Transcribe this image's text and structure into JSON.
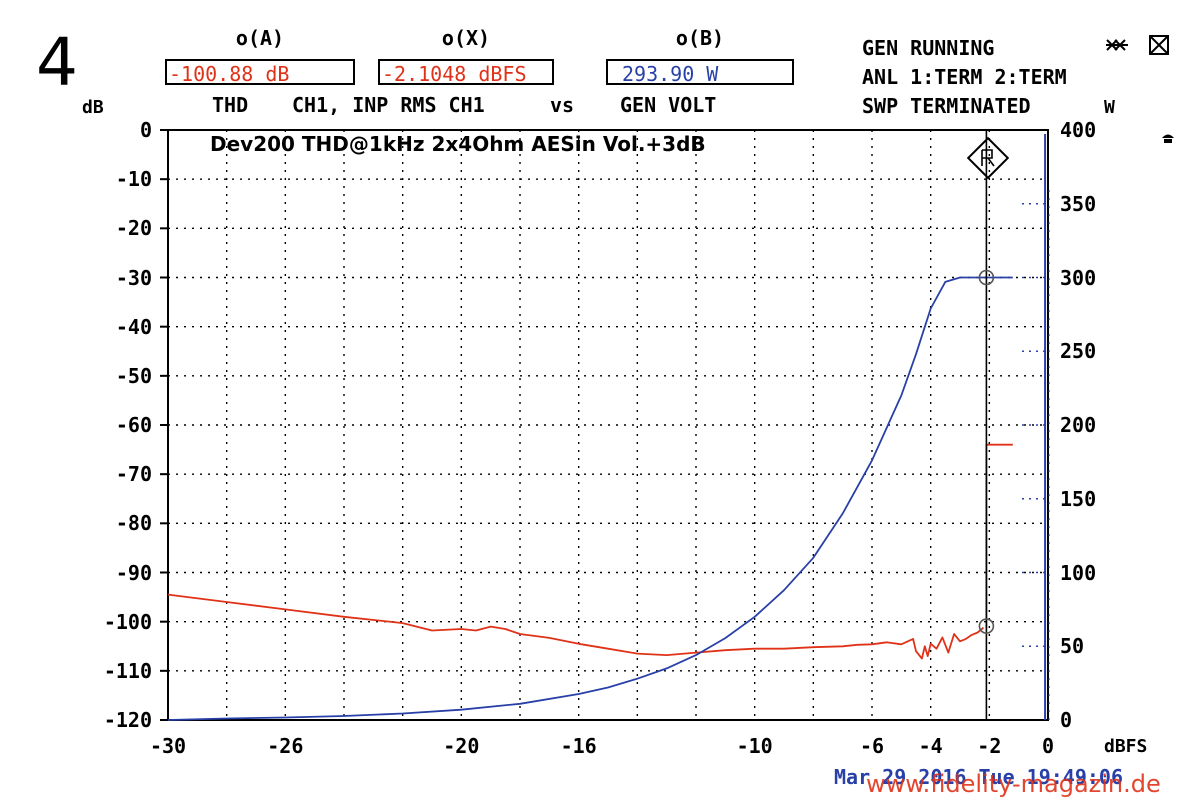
{
  "figure_number": "4",
  "readouts": [
    {
      "head": "o(A)",
      "value": "-100.88 dB",
      "caption": "THD"
    },
    {
      "head": "o(X)",
      "value": "-2.1048 dBFS",
      "caption": "CH1, INP RMS CH1"
    },
    {
      "head": "o(B)",
      "value": "293.90  W",
      "caption": "GEN VOLT"
    }
  ],
  "vs_label": "vs",
  "status": {
    "line1": "GEN RUNNING",
    "line2": "ANL 1:TERM 2:TERM",
    "line3": "SWP TERMINATED"
  },
  "footer": {
    "timestamp": "Mar 29 2016 Tue 19:49:06",
    "watermark": "www.fidelity-magazin.de"
  },
  "colors": {
    "thd_trace": "#e03218",
    "power_trace": "#2840a8",
    "grid": "#000000",
    "cursor": "#000000"
  },
  "chart_data": {
    "type": "line",
    "title": "Dev200 THD@1kHz 2x4Ohm AESin Vol.+3dB",
    "xlabel": "dBFS",
    "ylabel_left": "dB",
    "ylabel_right": "W",
    "xlim": [
      -30,
      0
    ],
    "ylim_left": [
      -120,
      0
    ],
    "ylim_right": [
      0,
      400
    ],
    "x_ticks": [
      "-30",
      "-26",
      "-20",
      "-16",
      "-10",
      "-6",
      "-4",
      "-2",
      "0"
    ],
    "y_ticks_left": [
      "0",
      "-10",
      "-20",
      "-30",
      "-40",
      "-50",
      "-60",
      "-70",
      "-80",
      "-90",
      "-100",
      "-110",
      "-120"
    ],
    "y_ticks_right": [
      "400",
      "350",
      "300",
      "250",
      "200",
      "150",
      "100",
      "50",
      "0"
    ],
    "grid": true,
    "cursor_x": -2.1,
    "series": [
      {
        "axis": "left",
        "x": [
          -30,
          -28,
          -26,
          -24,
          -22,
          -21,
          -20,
          -19.5,
          -19,
          -18.5,
          -18,
          -17,
          -16,
          -15,
          -14,
          -13,
          -12,
          -11,
          -10,
          -9,
          -8,
          -7,
          -6.5,
          -6,
          -5.5,
          -5,
          -4.6,
          -4.5,
          -4.3,
          -4.2,
          -4.1,
          -4,
          -3.8,
          -3.6,
          -3.4,
          -3.2,
          -3,
          -2.8,
          -2.6,
          -2.4,
          -2.2
        ],
        "values": [
          -94.5,
          -96,
          -97.5,
          -99,
          -100.3,
          -101.8,
          -101.5,
          -101.8,
          -101,
          -101.5,
          -102.5,
          -103.3,
          -104.5,
          -105.5,
          -106.5,
          -106.8,
          -106.3,
          -105.8,
          -105.5,
          -105.5,
          -105.2,
          -105,
          -104.7,
          -104.6,
          -104.2,
          -104.6,
          -103.5,
          -106,
          -107.5,
          -105,
          -107,
          -104.5,
          -105.5,
          -103.2,
          -106.3,
          -102.5,
          -104,
          -103.5,
          -102.7,
          -102.2,
          -101.2
        ]
      },
      {
        "axis": "left",
        "x": [
          -2.1,
          -2.1,
          -2.1,
          -2.1,
          -1.2
        ],
        "values": [
          -101.2,
          -91,
          -75,
          -64,
          -64
        ]
      },
      {
        "axis": "right",
        "x": [
          -30,
          -28,
          -26,
          -24,
          -22,
          -20,
          -18,
          -16,
          -15,
          -14,
          -13,
          -12,
          -11,
          -10,
          -9,
          -8,
          -7,
          -6,
          -5,
          -4.5,
          -4,
          -3.5,
          -3,
          -2.5,
          -2.1,
          -1.2
        ],
        "values": [
          0,
          1,
          1.7,
          2.7,
          4.4,
          7,
          11,
          17.6,
          22,
          28,
          35,
          44,
          55.5,
          70,
          88,
          110,
          140,
          176,
          220,
          248,
          279,
          297,
          300,
          300,
          300,
          300
        ]
      }
    ]
  }
}
